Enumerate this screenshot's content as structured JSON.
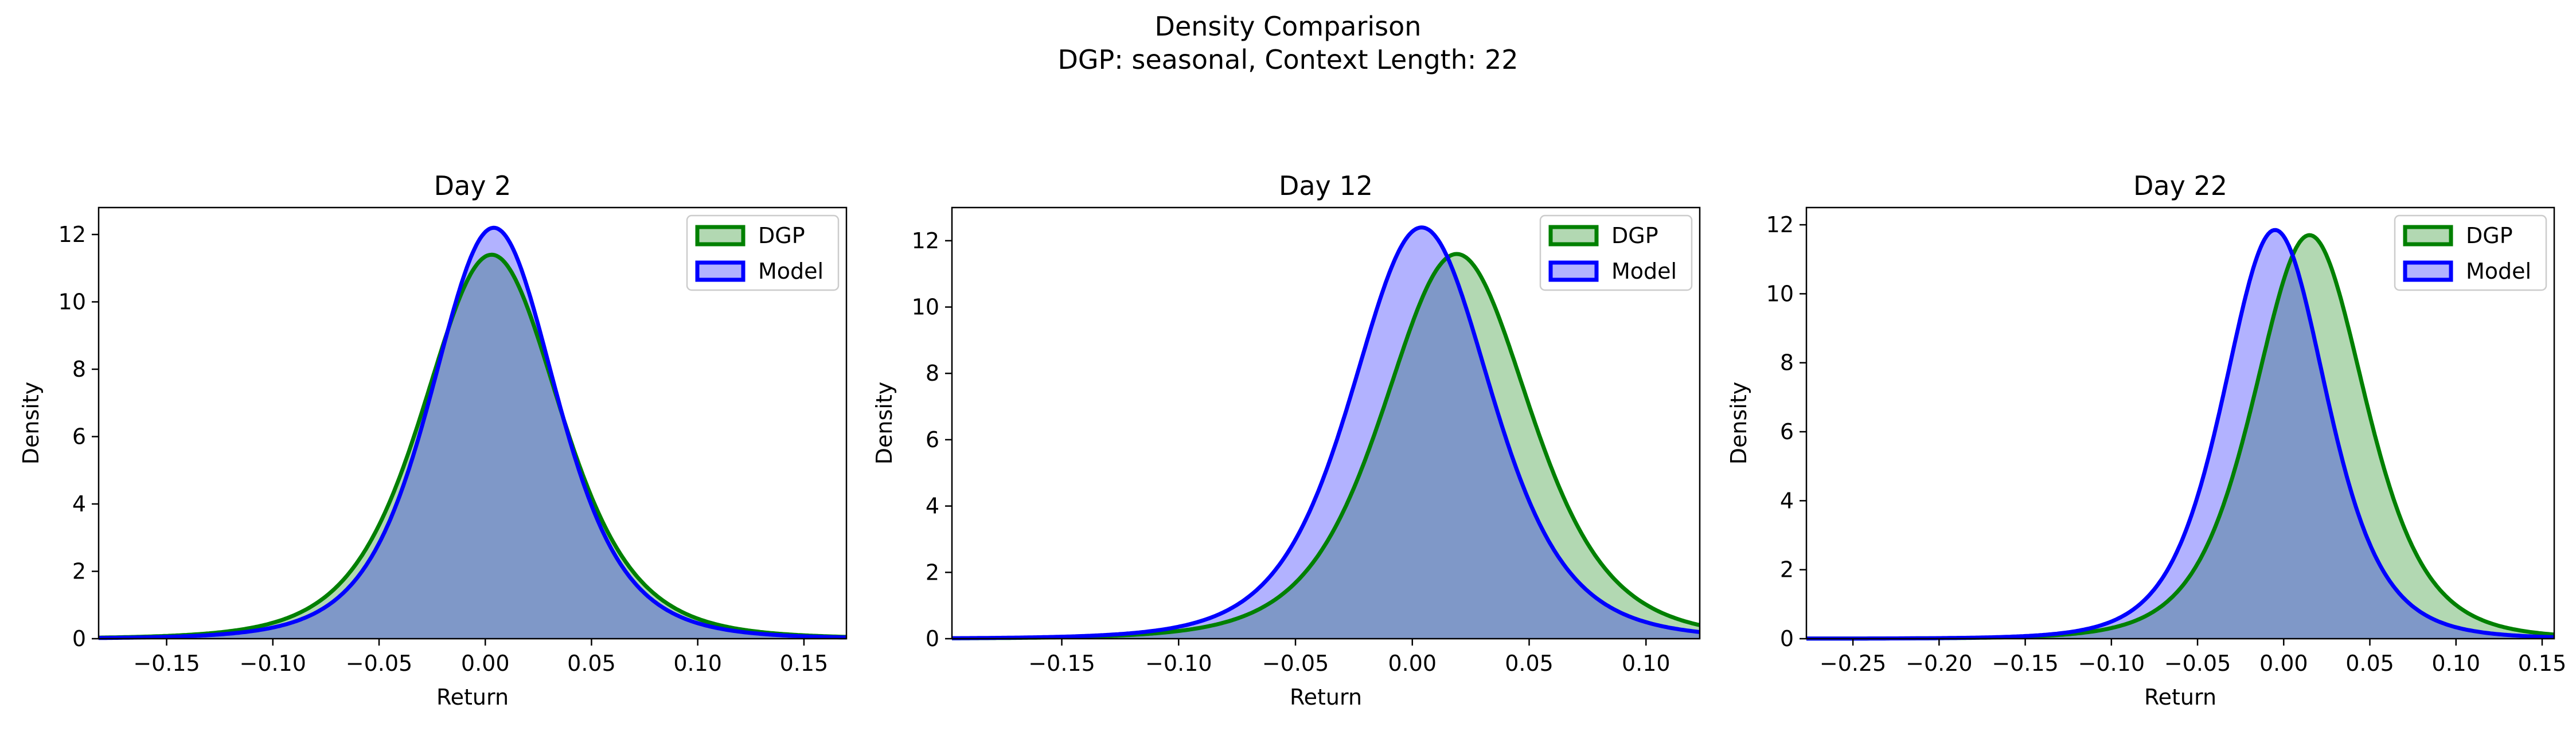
{
  "figure": {
    "title_line1": "Density Comparison",
    "title_line2": "DGP: seasonal, Context Length: 22"
  },
  "colors": {
    "dgp_edge": "#008000",
    "dgp_fill": "#b2d8b2",
    "model_edge": "#0000ff",
    "model_fill": "#b2b2ff",
    "overlap_fill": "#7f98c8"
  },
  "chart_data": [
    {
      "type": "area",
      "title": "Day 2",
      "xlabel": "Return",
      "ylabel": "Density",
      "xlim": [
        -0.182,
        0.17
      ],
      "ylim": [
        0,
        12.8
      ],
      "xticks": [
        -0.15,
        -0.1,
        -0.05,
        0.0,
        0.05,
        0.1,
        0.15
      ],
      "xtick_labels": [
        "−0.15",
        "−0.10",
        "−0.05",
        "0.00",
        "0.05",
        "0.10",
        "0.15"
      ],
      "yticks": [
        0,
        2,
        4,
        6,
        8,
        10,
        12
      ],
      "ytick_labels": [
        "0",
        "2",
        "4",
        "6",
        "8",
        "10",
        "12"
      ],
      "legend": "top-right",
      "series": [
        {
          "name": "DGP",
          "center": 0.003,
          "scale": 0.0335,
          "peak": 11.4,
          "x": [
            -0.1,
            -0.05,
            0.0,
            0.003,
            0.05,
            0.1
          ],
          "y": [
            0.5,
            5.1,
            11.4,
            11.4,
            5.3,
            0.4
          ]
        },
        {
          "name": "Model",
          "center": 0.004,
          "scale": 0.0305,
          "peak": 12.2,
          "x": [
            -0.1,
            -0.05,
            0.0,
            0.004,
            0.05,
            0.1
          ],
          "y": [
            0.45,
            4.0,
            12.2,
            12.2,
            4.6,
            0.55
          ]
        }
      ]
    },
    {
      "type": "area",
      "title": "Day 12",
      "xlabel": "Return",
      "ylabel": "Density",
      "xlim": [
        -0.197,
        0.123
      ],
      "ylim": [
        0,
        13.0
      ],
      "xticks": [
        -0.15,
        -0.1,
        -0.05,
        0.0,
        0.05,
        0.1
      ],
      "xtick_labels": [
        "−0.15",
        "−0.10",
        "−0.05",
        "0.00",
        "0.05",
        "0.10"
      ],
      "yticks": [
        0,
        2,
        4,
        6,
        8,
        10,
        12
      ],
      "ytick_labels": [
        "0",
        "2",
        "4",
        "6",
        "8",
        "10",
        "12"
      ],
      "legend": "top-right",
      "series": [
        {
          "name": "DGP",
          "center": 0.019,
          "scale": 0.0325,
          "peak": 11.6,
          "x": [
            -0.05,
            0.0,
            0.019,
            0.05,
            0.1
          ],
          "y": [
            1.0,
            8.4,
            11.6,
            6.5,
            0.6
          ]
        },
        {
          "name": "Model",
          "center": 0.004,
          "scale": 0.031,
          "peak": 12.4,
          "x": [
            -0.1,
            -0.05,
            0.0,
            0.004,
            0.05,
            0.1
          ],
          "y": [
            0.7,
            3.4,
            12.3,
            12.4,
            3.8,
            0.2
          ]
        }
      ]
    },
    {
      "type": "area",
      "title": "Day 22",
      "xlabel": "Return",
      "ylabel": "Density",
      "xlim": [
        -0.277,
        0.157
      ],
      "ylim": [
        0,
        12.5
      ],
      "xticks": [
        -0.25,
        -0.2,
        -0.15,
        -0.1,
        -0.05,
        0.0,
        0.05,
        0.1,
        0.15
      ],
      "xtick_labels": [
        "−0.25",
        "−0.20",
        "−0.15",
        "−0.10",
        "−0.05",
        "0.00",
        "0.05",
        "0.10",
        "0.15"
      ],
      "yticks": [
        0,
        2,
        4,
        6,
        8,
        10,
        12
      ],
      "ytick_labels": [
        "0",
        "2",
        "4",
        "6",
        "8",
        "10",
        "12"
      ],
      "legend": "top-right",
      "series": [
        {
          "name": "DGP",
          "center": 0.015,
          "scale": 0.0335,
          "peak": 11.7,
          "x": [
            -0.05,
            0.0,
            0.015,
            0.05,
            0.1
          ],
          "y": [
            0.5,
            8.5,
            11.7,
            4.9,
            0.3
          ]
        },
        {
          "name": "Model",
          "center": -0.005,
          "scale": 0.031,
          "peak": 11.85,
          "x": [
            -0.1,
            -0.05,
            -0.005,
            0.0,
            0.05,
            0.1
          ],
          "y": [
            0.9,
            4.2,
            11.85,
            11.5,
            1.8,
            0.1
          ]
        }
      ]
    }
  ]
}
